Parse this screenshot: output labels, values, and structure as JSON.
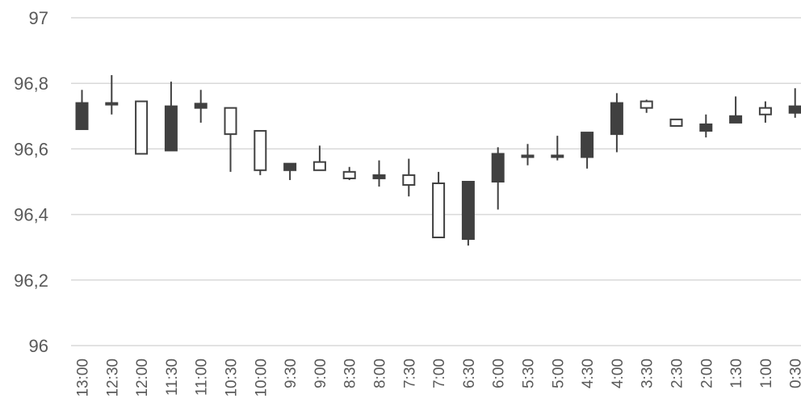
{
  "chart_data": {
    "type": "candlestick",
    "title": "",
    "xlabel": "",
    "ylabel": "",
    "ylim": [
      96,
      97
    ],
    "yticks": [
      "96",
      "96,2",
      "96,4",
      "96,6",
      "96,8",
      "97"
    ],
    "ytick_values": [
      96,
      96.2,
      96.4,
      96.6,
      96.8,
      97
    ],
    "grid": true,
    "legend": "none",
    "colors": {
      "up": "#ffffff",
      "down": "#404040",
      "line": "#404040",
      "grid": "#d9d9d9",
      "text": "#595959"
    },
    "categories": [
      "13:00",
      "12:30",
      "12:00",
      "11:30",
      "11:00",
      "10:30",
      "10:00",
      "9:30",
      "9:00",
      "8:30",
      "8:00",
      "7:30",
      "7:00",
      "6:30",
      "6:00",
      "5:30",
      "5:00",
      "4:30",
      "4:00",
      "3:30",
      "2:30",
      "2:00",
      "1:30",
      "1:00",
      "0:30"
    ],
    "open": [
      96.74,
      96.735,
      96.585,
      96.73,
      96.738,
      96.645,
      96.535,
      96.555,
      96.535,
      96.51,
      96.52,
      96.49,
      96.33,
      96.5,
      96.585,
      96.575,
      96.58,
      96.65,
      96.74,
      96.725,
      96.67,
      96.675,
      96.7,
      96.705,
      96.73
    ],
    "close": [
      96.66,
      96.74,
      96.745,
      96.595,
      96.725,
      96.725,
      96.655,
      96.535,
      96.56,
      96.53,
      96.51,
      96.52,
      96.495,
      96.325,
      96.5,
      96.58,
      96.575,
      96.575,
      96.645,
      96.745,
      96.69,
      96.655,
      96.68,
      96.725,
      96.71
    ],
    "high": [
      96.78,
      96.825,
      96.745,
      96.805,
      96.78,
      96.725,
      96.655,
      96.555,
      96.61,
      96.545,
      96.565,
      96.57,
      96.53,
      96.5,
      96.605,
      96.615,
      96.64,
      96.65,
      96.77,
      96.75,
      96.69,
      96.705,
      96.76,
      96.745,
      96.785
    ],
    "low": [
      96.66,
      96.705,
      96.585,
      96.595,
      96.68,
      96.53,
      96.52,
      96.505,
      96.535,
      96.505,
      96.485,
      96.455,
      96.33,
      96.305,
      96.415,
      96.55,
      96.565,
      96.54,
      96.59,
      96.71,
      96.67,
      96.635,
      96.68,
      96.68,
      96.695
    ]
  }
}
